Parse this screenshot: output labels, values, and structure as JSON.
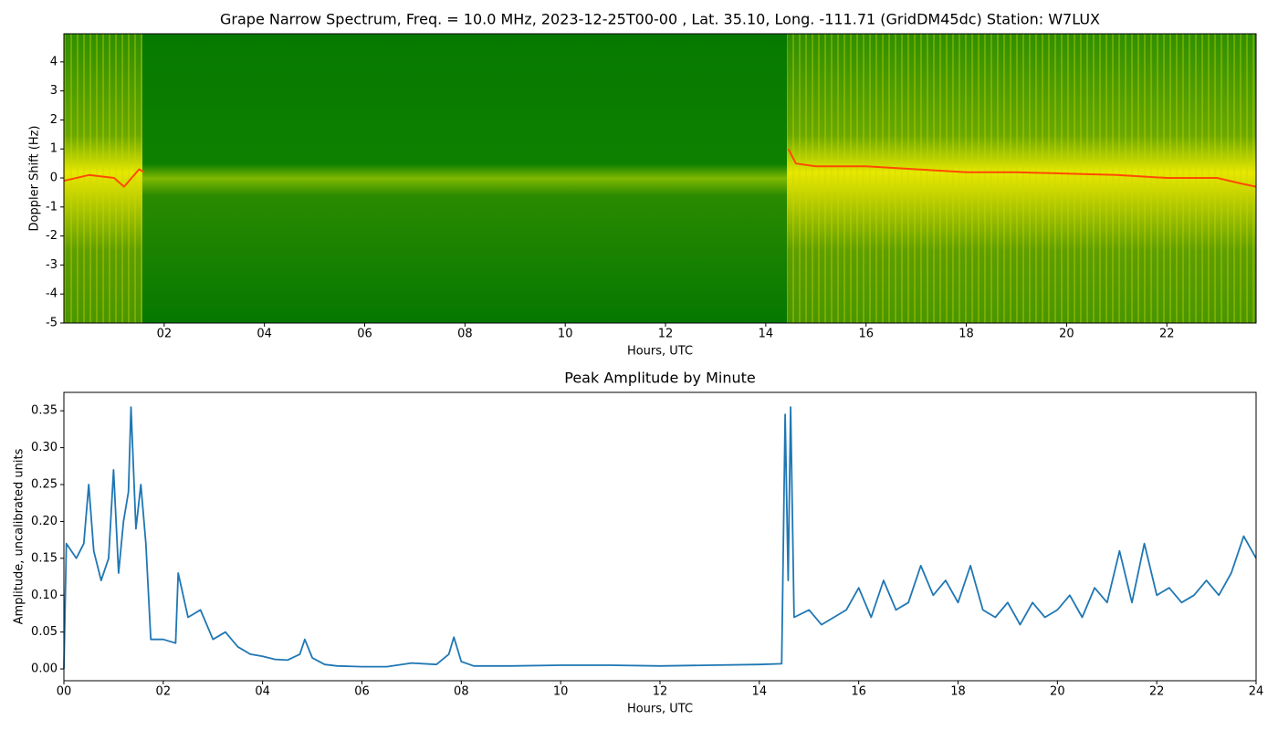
{
  "chart_data": [
    {
      "type": "spectrogram",
      "title": "Grape Narrow Spectrum, Freq. = 10.0 MHz, 2023-12-25T00-00 , Lat.  35.10, Long. -111.71 (GridDM45dc) Station: W7LUX",
      "x_label": "Hours, UTC",
      "y_label": "Doppler Shift (Hz)",
      "xlim": [
        0,
        23.78
      ],
      "ylim": [
        -5,
        4.97
      ],
      "xticks": [
        {
          "value": 2,
          "label": "02"
        },
        {
          "value": 4,
          "label": "04"
        },
        {
          "value": 6,
          "label": "06"
        },
        {
          "value": 8,
          "label": "08"
        },
        {
          "value": 10,
          "label": "10"
        },
        {
          "value": 12,
          "label": "12"
        },
        {
          "value": 14,
          "label": "14"
        },
        {
          "value": 16,
          "label": "16"
        },
        {
          "value": 18,
          "label": "18"
        },
        {
          "value": 20,
          "label": "20"
        },
        {
          "value": 22,
          "label": "22"
        }
      ],
      "yticks": [
        -5,
        -4,
        -3,
        -2,
        -1,
        0,
        1,
        2,
        3,
        4
      ],
      "color": "#ff4a00",
      "x": [
        0,
        0.5,
        1.0,
        1.2,
        1.5,
        1.6,
        8,
        14.45,
        14.6,
        15,
        16,
        17,
        18,
        19,
        20,
        21,
        22,
        23,
        23.5,
        23.78
      ],
      "values": [
        -0.1,
        0.1,
        0.0,
        -0.3,
        0.3,
        0.2,
        null,
        1.0,
        0.5,
        0.4,
        0.4,
        0.3,
        0.2,
        0.2,
        0.15,
        0.1,
        0.0,
        0.0,
        -0.2,
        -0.3
      ]
    },
    {
      "type": "line",
      "title": "Peak Amplitude by Minute",
      "x_label": "Hours, UTC",
      "y_label": "Amplitude, uncalibrated units",
      "xlim": [
        0,
        24
      ],
      "ylim": [
        -0.016,
        0.375
      ],
      "xticks": [
        {
          "value": 0,
          "label": "00"
        },
        {
          "value": 2,
          "label": "02"
        },
        {
          "value": 4,
          "label": "04"
        },
        {
          "value": 6,
          "label": "06"
        },
        {
          "value": 8,
          "label": "08"
        },
        {
          "value": 10,
          "label": "10"
        },
        {
          "value": 12,
          "label": "12"
        },
        {
          "value": 14,
          "label": "14"
        },
        {
          "value": 16,
          "label": "16"
        },
        {
          "value": 18,
          "label": "18"
        },
        {
          "value": 20,
          "label": "20"
        },
        {
          "value": 22,
          "label": "22"
        },
        {
          "value": 24,
          "label": "24"
        }
      ],
      "yticks": [
        {
          "value": 0,
          "label": "0.00"
        },
        {
          "value": 0.05,
          "label": "0.05"
        },
        {
          "value": 0.1,
          "label": "0.10"
        },
        {
          "value": 0.15,
          "label": "0.15"
        },
        {
          "value": 0.2,
          "label": "0.20"
        },
        {
          "value": 0.25,
          "label": "0.25"
        },
        {
          "value": 0.3,
          "label": "0.30"
        },
        {
          "value": 0.35,
          "label": "0.35"
        }
      ],
      "color": "#1f77b4",
      "x": [
        0,
        0.05,
        0.25,
        0.4,
        0.5,
        0.6,
        0.75,
        0.9,
        1.0,
        1.1,
        1.2,
        1.3,
        1.35,
        1.45,
        1.55,
        1.65,
        1.75,
        2.0,
        2.25,
        2.3,
        2.5,
        2.75,
        3.0,
        3.25,
        3.5,
        3.75,
        4.0,
        4.25,
        4.5,
        4.75,
        4.85,
        5.0,
        5.25,
        5.5,
        6.0,
        6.5,
        7.0,
        7.5,
        7.75,
        7.85,
        8.0,
        8.25,
        9,
        10,
        11,
        12,
        13,
        14,
        14.45,
        14.52,
        14.58,
        14.63,
        14.7,
        15,
        15.25,
        15.5,
        15.75,
        16,
        16.25,
        16.5,
        16.75,
        17,
        17.25,
        17.5,
        17.75,
        18,
        18.25,
        18.5,
        18.75,
        19,
        19.25,
        19.5,
        19.75,
        20,
        20.25,
        20.5,
        20.75,
        21,
        21.25,
        21.5,
        21.75,
        22,
        22.25,
        22.5,
        22.75,
        23,
        23.25,
        23.5,
        23.75,
        24
      ],
      "values": [
        0.0,
        0.17,
        0.15,
        0.17,
        0.25,
        0.16,
        0.12,
        0.15,
        0.27,
        0.13,
        0.2,
        0.24,
        0.355,
        0.19,
        0.25,
        0.17,
        0.04,
        0.04,
        0.035,
        0.13,
        0.07,
        0.08,
        0.04,
        0.05,
        0.03,
        0.02,
        0.017,
        0.013,
        0.012,
        0.02,
        0.04,
        0.015,
        0.006,
        0.004,
        0.003,
        0.003,
        0.008,
        0.006,
        0.02,
        0.043,
        0.01,
        0.004,
        0.004,
        0.005,
        0.005,
        0.004,
        0.005,
        0.006,
        0.007,
        0.345,
        0.12,
        0.355,
        0.07,
        0.08,
        0.06,
        0.07,
        0.08,
        0.11,
        0.07,
        0.12,
        0.08,
        0.09,
        0.14,
        0.1,
        0.12,
        0.09,
        0.14,
        0.08,
        0.07,
        0.09,
        0.06,
        0.09,
        0.07,
        0.08,
        0.1,
        0.07,
        0.11,
        0.09,
        0.16,
        0.09,
        0.17,
        0.1,
        0.11,
        0.09,
        0.1,
        0.12,
        0.1,
        0.13,
        0.18,
        0.15
      ]
    }
  ]
}
